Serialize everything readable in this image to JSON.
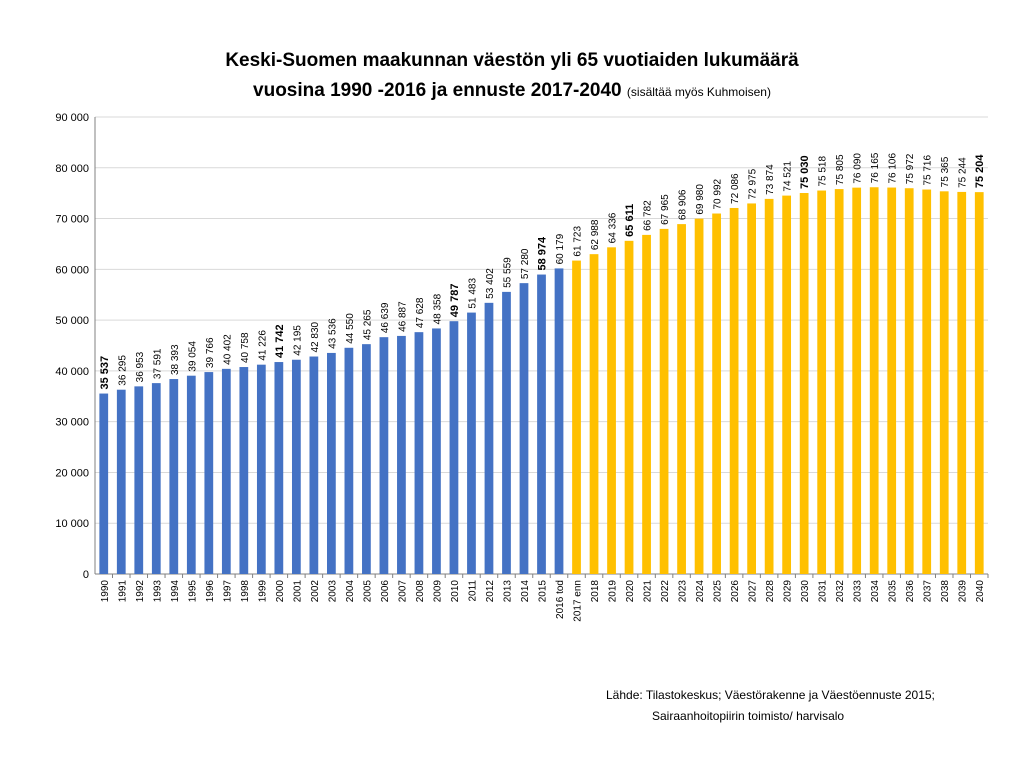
{
  "chart_data": {
    "type": "bar",
    "title": "Keski-Suomen maakunnan väestön yli 65 vuotiaiden lukumäärä",
    "title_line2": "vuosina 1990 -2016 ja ennuste 2017-2040",
    "subtitle": "(sisältää myös Kuhmoisen)",
    "xlabel": "",
    "ylabel": "",
    "ylim": [
      0,
      90000
    ],
    "yticks": [
      0,
      10000,
      20000,
      30000,
      40000,
      50000,
      60000,
      70000,
      80000,
      90000
    ],
    "ytick_labels": [
      "0",
      "10 000",
      "20 000",
      "30 000",
      "40 000",
      "50 000",
      "60 000",
      "70 000",
      "80 000",
      "90 000"
    ],
    "grid": true,
    "categories": [
      "1990",
      "1991",
      "1992",
      "1993",
      "1994",
      "1995",
      "1996",
      "1997",
      "1998",
      "1999",
      "2000",
      "2001",
      "2002",
      "2003",
      "2004",
      "2005",
      "2006",
      "2007",
      "2008",
      "2009",
      "2010",
      "2011",
      "2012",
      "2013",
      "2014",
      "2015",
      "2016 tod",
      "2017 enn",
      "2018",
      "2019",
      "2020",
      "2021",
      "2022",
      "2023",
      "2024",
      "2025",
      "2026",
      "2027",
      "2028",
      "2029",
      "2030",
      "2031",
      "2032",
      "2033",
      "2034",
      "2035",
      "2036",
      "2037",
      "2038",
      "2039",
      "2040"
    ],
    "values": [
      35537,
      36295,
      36953,
      37591,
      38393,
      39054,
      39766,
      40402,
      40758,
      41226,
      41742,
      42195,
      42830,
      43536,
      44550,
      45265,
      46639,
      46887,
      47628,
      48358,
      49787,
      51483,
      53402,
      55559,
      57280,
      58974,
      60179,
      61723,
      62988,
      64336,
      65611,
      66782,
      67965,
      68906,
      69980,
      70992,
      72086,
      72975,
      73874,
      74521,
      75030,
      75518,
      75805,
      76090,
      76165,
      76106,
      75972,
      75716,
      75365,
      75244,
      75204
    ],
    "value_labels": [
      "35 537",
      "36 295",
      "36 953",
      "37 591",
      "38 393",
      "39 054",
      "39 766",
      "40 402",
      "40 758",
      "41 226",
      "41 742",
      "42 195",
      "42 830",
      "43 536",
      "44 550",
      "45 265",
      "46 639",
      "46 887",
      "47 628",
      "48 358",
      "49 787",
      "51 483",
      "53 402",
      "55 559",
      "57 280",
      "58 974",
      "60 179",
      "61 723",
      "62 988",
      "64 336",
      "65 611",
      "66 782",
      "67 965",
      "68 906",
      "69 980",
      "70 992",
      "72 086",
      "72 975",
      "73 874",
      "74 521",
      "75 030",
      "75 518",
      "75 805",
      "76 090",
      "76 165",
      "76 106",
      "75 972",
      "75 716",
      "75 365",
      "75 244",
      "75 204"
    ],
    "bold_labels": [
      "1990",
      "2000",
      "2010",
      "2015",
      "2020",
      "2030",
      "2040"
    ],
    "actual_count": 27,
    "colors": {
      "actual": "#4472C4",
      "forecast": "#FFC000"
    },
    "source_line1": "Lähde: Tilastokeskus; Väestörakenne ja Väestöennuste 2015;",
    "source_line2": "Sairaanhoitopiirin toimisto/ harvisalo"
  }
}
